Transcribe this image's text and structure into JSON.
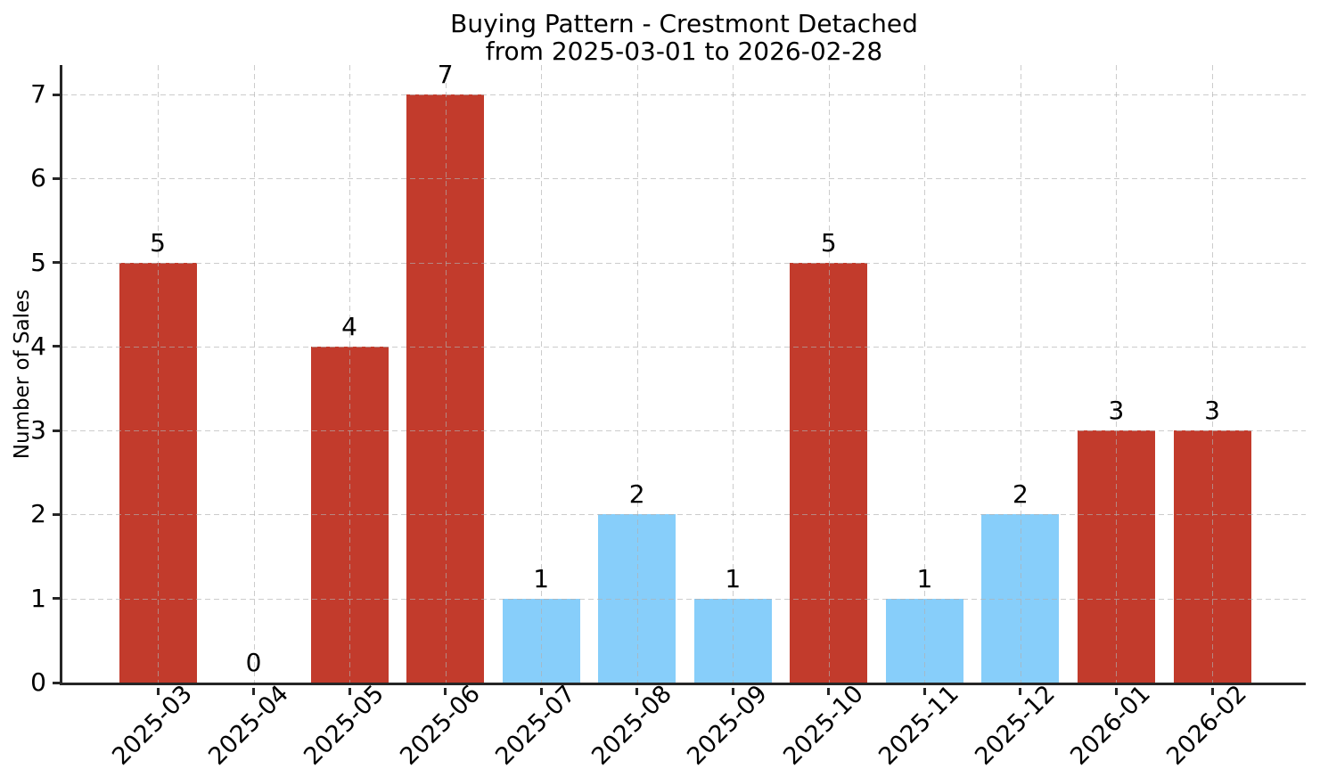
{
  "chart_data": {
    "type": "bar",
    "title": "Buying Pattern - Crestmont Detached",
    "subtitle": "from 2025-03-01 to 2026-02-28",
    "xlabel": "",
    "ylabel": "Number of Sales",
    "categories": [
      "2025-03",
      "2025-04",
      "2025-05",
      "2025-06",
      "2025-07",
      "2025-08",
      "2025-09",
      "2025-10",
      "2025-11",
      "2025-12",
      "2026-01",
      "2026-02"
    ],
    "values": [
      5,
      0,
      4,
      7,
      1,
      2,
      1,
      5,
      1,
      2,
      3,
      3
    ],
    "value_labels": [
      "5",
      "0",
      "4",
      "7",
      "1",
      "2",
      "1",
      "5",
      "1",
      "2",
      "3",
      "3"
    ],
    "bar_colors": [
      "#c23b2c",
      "#87cefa",
      "#c23b2c",
      "#c23b2c",
      "#87cefa",
      "#87cefa",
      "#87cefa",
      "#c23b2c",
      "#87cefa",
      "#87cefa",
      "#c23b2c",
      "#c23b2c"
    ],
    "yticks": [
      0,
      1,
      2,
      3,
      4,
      5,
      6,
      7
    ],
    "ylim": [
      0,
      7.35
    ],
    "grid": true,
    "grid_style": "dashed-both-axes-drawn-over-bars",
    "legend_position": "none",
    "x_tick_rotation_deg": 45,
    "colors": {
      "red_bar": "#c23b2c",
      "blue_bar": "#87cefa",
      "grid": "#b0b0b0",
      "axis_spine": "#262626",
      "background": "#ffffff",
      "text": "#000000"
    }
  }
}
